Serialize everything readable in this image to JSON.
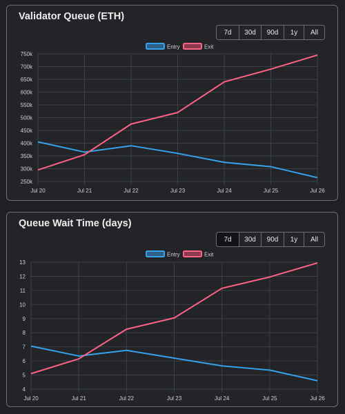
{
  "cards": [
    {
      "title": "Validator Queue (ETH)",
      "ranges": [
        "7d",
        "30d",
        "90d",
        "1y",
        "All"
      ],
      "active_range": "",
      "chart_data": {
        "type": "line",
        "x": [
          "Jul 20",
          "Jul 21",
          "Jul 22",
          "Jul 23",
          "Jul 24",
          "Jul 25",
          "Jul 26"
        ],
        "series": [
          {
            "name": "Entry",
            "color": "#36a2eb",
            "fill": "#2d5f87",
            "values": [
              405000,
              365000,
              390000,
              360000,
              325000,
              308000,
              265000
            ]
          },
          {
            "name": "Exit",
            "color": "#ff6384",
            "fill": "#8a3b4f",
            "values": [
              295000,
              355000,
              475000,
              520000,
              640000,
              690000,
              745000
            ]
          }
        ],
        "ylim": [
          250000,
          750000
        ],
        "yticks": [
          250000,
          300000,
          350000,
          400000,
          450000,
          500000,
          550000,
          600000,
          650000,
          700000,
          750000
        ],
        "ytick_labels": [
          "250k",
          "300k",
          "350k",
          "400k",
          "450k",
          "500k",
          "550k",
          "600k",
          "650k",
          "700k",
          "750k"
        ],
        "legend": "top-center",
        "grid": true
      }
    },
    {
      "title": "Queue Wait Time (days)",
      "ranges": [
        "7d",
        "30d",
        "90d",
        "1y",
        "All"
      ],
      "active_range": "7d",
      "chart_data": {
        "type": "line",
        "x": [
          "Jul 20",
          "Jul 21",
          "Jul 22",
          "Jul 23",
          "Jul 24",
          "Jul 25",
          "Jul 26"
        ],
        "series": [
          {
            "name": "Entry",
            "color": "#36a2eb",
            "fill": "#2d5f87",
            "values": [
              7.05,
              6.35,
              6.75,
              6.2,
              5.65,
              5.35,
              4.6
            ]
          },
          {
            "name": "Exit",
            "color": "#ff6384",
            "fill": "#8a3b4f",
            "values": [
              5.1,
              6.15,
              8.25,
              9.05,
              11.15,
              11.95,
              12.95
            ]
          }
        ],
        "ylim": [
          4,
          13
        ],
        "yticks": [
          4,
          5,
          6,
          7,
          8,
          9,
          10,
          11,
          12,
          13
        ],
        "ytick_labels": [
          "4",
          "5",
          "6",
          "7",
          "8",
          "9",
          "10",
          "11",
          "12",
          "13"
        ],
        "legend": "top-center",
        "grid": true
      }
    }
  ]
}
